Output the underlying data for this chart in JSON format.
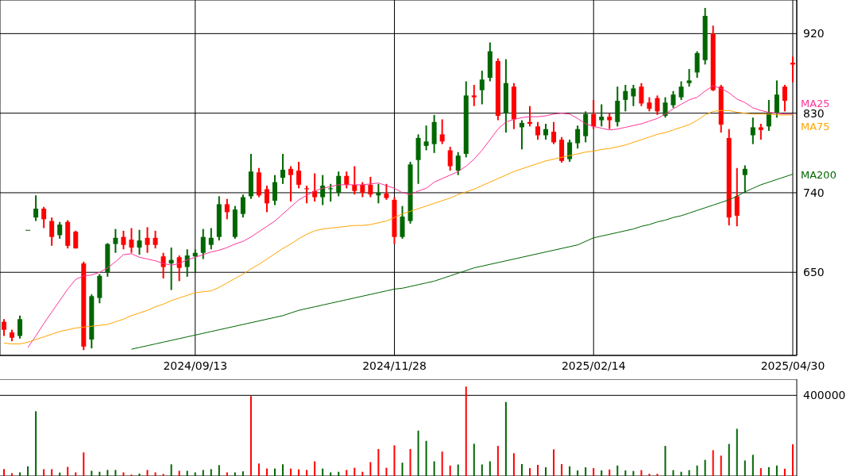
{
  "chart_data": [
    {
      "type": "candlestick",
      "categories": [
        null,
        null,
        null,
        null,
        null,
        null,
        null,
        null,
        null,
        null,
        null,
        null,
        null,
        null,
        null,
        null,
        null,
        null,
        null,
        null,
        null,
        null,
        null,
        null,
        "2024/09/13",
        null,
        null,
        null,
        null,
        null,
        null,
        null,
        null,
        null,
        null,
        null,
        null,
        null,
        null,
        null,
        null,
        null,
        null,
        null,
        null,
        null,
        null,
        null,
        null,
        "2024/11/28",
        null,
        null,
        null,
        null,
        null,
        null,
        null,
        null,
        null,
        null,
        null,
        null,
        null,
        null,
        null,
        null,
        null,
        null,
        null,
        null,
        null,
        null,
        null,
        null,
        "2025/02/14",
        null,
        null,
        null,
        null,
        null,
        null,
        null,
        null,
        null,
        null,
        null,
        null,
        null,
        null,
        null,
        null,
        null,
        null,
        null,
        null,
        null,
        null,
        null,
        null,
        "2025/04/30"
      ],
      "ohlc": [
        [
          594,
          597,
          578,
          585
        ],
        [
          582,
          585,
          572,
          576
        ],
        [
          578,
          601,
          575,
          597
        ],
        [
          698,
          698,
          698,
          698
        ],
        [
          712,
          737,
          708,
          722
        ],
        [
          722,
          724,
          700,
          710
        ],
        [
          708,
          712,
          680,
          690
        ],
        [
          692,
          707,
          688,
          704
        ],
        [
          707,
          709,
          677,
          680
        ],
        [
          696,
          697,
          677,
          677
        ],
        [
          660,
          662,
          562,
          566
        ],
        [
          574,
          625,
          564,
          623
        ],
        [
          621,
          648,
          615,
          646
        ],
        [
          650,
          683,
          645,
          682
        ],
        [
          682,
          699,
          672,
          689
        ],
        [
          690,
          697,
          676,
          681
        ],
        [
          687,
          700,
          672,
          678
        ],
        [
          678,
          698,
          670,
          686
        ],
        [
          689,
          701,
          672,
          681
        ],
        [
          689,
          697,
          677,
          681
        ],
        [
          668,
          672,
          643,
          656
        ],
        [
          660,
          678,
          630,
          664
        ],
        [
          667,
          669,
          640,
          655
        ],
        [
          656,
          676,
          645,
          669
        ],
        [
          668,
          676,
          650,
          672
        ],
        [
          672,
          699,
          665,
          690
        ],
        [
          681,
          700,
          676,
          689
        ],
        [
          690,
          736,
          686,
          727
        ],
        [
          727,
          733,
          710,
          718
        ],
        [
          690,
          725,
          688,
          721
        ],
        [
          716,
          738,
          712,
          735
        ],
        [
          736,
          784,
          733,
          764
        ],
        [
          763,
          768,
          735,
          737
        ],
        [
          744,
          748,
          718,
          728
        ],
        [
          731,
          760,
          726,
          752
        ],
        [
          757,
          784,
          750,
          766
        ],
        [
          767,
          770,
          730,
          760
        ],
        [
          765,
          775,
          745,
          749
        ],
        [
          745,
          748,
          728,
          744
        ],
        [
          742,
          762,
          730,
          735
        ],
        [
          735,
          760,
          726,
          748
        ],
        [
          744,
          750,
          730,
          745
        ],
        [
          740,
          764,
          736,
          759
        ],
        [
          759,
          764,
          745,
          749
        ],
        [
          749,
          770,
          738,
          742
        ],
        [
          749,
          752,
          735,
          740
        ],
        [
          749,
          758,
          735,
          738
        ],
        [
          737,
          750,
          728,
          740
        ],
        [
          739,
          750,
          732,
          734
        ],
        [
          732,
          735,
          682,
          690
        ],
        [
          690,
          725,
          688,
          713
        ],
        [
          708,
          775,
          705,
          772
        ],
        [
          777,
          806,
          750,
          802
        ],
        [
          793,
          816,
          788,
          798
        ],
        [
          795,
          828,
          785,
          820
        ],
        [
          806,
          823,
          795,
          798
        ],
        [
          788,
          792,
          765,
          770
        ],
        [
          765,
          786,
          760,
          782
        ],
        [
          784,
          866,
          780,
          850
        ],
        [
          850,
          862,
          838,
          848
        ],
        [
          856,
          878,
          840,
          868
        ],
        [
          870,
          910,
          866,
          900
        ],
        [
          889,
          892,
          822,
          827
        ],
        [
          830,
          891,
          808,
          864
        ],
        [
          860,
          864,
          812,
          823
        ],
        [
          814,
          822,
          789,
          819
        ],
        [
          820,
          838,
          815,
          818
        ],
        [
          815,
          820,
          800,
          805
        ],
        [
          805,
          818,
          800,
          812
        ],
        [
          809,
          820,
          795,
          797
        ],
        [
          800,
          803,
          774,
          776
        ],
        [
          778,
          800,
          775,
          797
        ],
        [
          796,
          816,
          790,
          812
        ],
        [
          804,
          832,
          797,
          829
        ],
        [
          829,
          845,
          812,
          815
        ],
        [
          822,
          840,
          815,
          826
        ],
        [
          826,
          830,
          812,
          822
        ],
        [
          820,
          860,
          815,
          844
        ],
        [
          845,
          862,
          832,
          855
        ],
        [
          849,
          862,
          838,
          858
        ],
        [
          860,
          864,
          838,
          841
        ],
        [
          842,
          848,
          832,
          835
        ],
        [
          847,
          850,
          828,
          832
        ],
        [
          827,
          848,
          825,
          842
        ],
        [
          839,
          855,
          836,
          851
        ],
        [
          848,
          866,
          845,
          860
        ],
        [
          864,
          880,
          860,
          867
        ],
        [
          876,
          900,
          870,
          898
        ],
        [
          890,
          949,
          885,
          940
        ],
        [
          920,
          929,
          855,
          856
        ],
        [
          860,
          862,
          808,
          817
        ],
        [
          802,
          812,
          703,
          712
        ],
        [
          736,
          768,
          702,
          714
        ],
        [
          760,
          771,
          740,
          767
        ],
        [
          805,
          825,
          795,
          814
        ],
        [
          814,
          818,
          800,
          811
        ],
        [
          815,
          845,
          810,
          830
        ],
        [
          830,
          867,
          825,
          851
        ],
        [
          860,
          862,
          832,
          844
        ],
        [
          887,
          894,
          865,
          885
        ]
      ],
      "colors": [
        "#ff0000",
        "#ff0000",
        "#006600",
        "#006600",
        "#006600",
        "#ff0000",
        "#ff0000",
        "#006600",
        "#ff0000",
        "#ff0000",
        "#ff0000",
        "#006600",
        "#006600",
        "#006600",
        "#006600",
        "#ff0000",
        "#ff0000",
        "#006600",
        "#ff0000",
        "#ff0000",
        "#ff0000",
        "#006600",
        "#ff0000",
        "#006600",
        "#006600",
        "#006600",
        "#006600",
        "#006600",
        "#ff0000",
        "#006600",
        "#006600",
        "#006600",
        "#ff0000",
        "#ff0000",
        "#006600",
        "#006600",
        "#ff0000",
        "#ff0000",
        "#ff0000",
        "#ff0000",
        "#006600",
        "#006600",
        "#006600",
        "#ff0000",
        "#ff0000",
        "#ff0000",
        "#ff0000",
        "#006600",
        "#ff0000",
        "#ff0000",
        "#006600",
        "#006600",
        "#006600",
        "#006600",
        "#006600",
        "#ff0000",
        "#ff0000",
        "#006600",
        "#006600",
        "#ff0000",
        "#006600",
        "#006600",
        "#ff0000",
        "#006600",
        "#ff0000",
        "#006600",
        "#ff0000",
        "#ff0000",
        "#006600",
        "#ff0000",
        "#ff0000",
        "#006600",
        "#006600",
        "#006600",
        "#ff0000",
        "#006600",
        "#ff0000",
        "#006600",
        "#006600",
        "#006600",
        "#ff0000",
        "#ff0000",
        "#ff0000",
        "#006600",
        "#006600",
        "#006600",
        "#006600",
        "#006600",
        "#006600",
        "#ff0000",
        "#ff0000",
        "#ff0000",
        "#ff0000",
        "#006600",
        "#006600",
        "#ff0000",
        "#006600",
        "#006600",
        "#ff0000",
        "#ff0000"
      ],
      "series": [
        {
          "name": "MA25",
          "type": "line",
          "color": "#ff3399",
          "values": [
            null,
            null,
            null,
            565,
            578,
            592,
            605,
            618,
            631,
            642,
            646,
            647,
            650,
            655,
            662,
            670,
            671,
            667,
            665,
            663,
            660,
            658,
            660,
            664,
            667,
            670,
            673,
            675,
            678,
            682,
            685,
            690,
            696,
            702,
            708,
            716,
            724,
            732,
            737,
            742,
            745,
            747,
            749,
            749,
            749,
            749,
            750,
            751,
            748,
            745,
            740,
            738,
            742,
            745,
            752,
            756,
            760,
            764,
            770,
            778,
            788,
            800,
            812,
            820,
            823,
            825,
            826,
            826,
            827,
            829,
            830,
            829,
            824,
            818,
            815,
            813,
            811,
            812,
            814,
            816,
            818,
            821,
            824,
            829,
            835,
            840,
            845,
            848,
            855,
            861,
            858,
            853,
            846,
            842,
            836,
            833,
            831,
            830,
            829,
            829
          ]
        },
        {
          "name": "MA75",
          "type": "line",
          "color": "#ffa500",
          "values": [
            570,
            569,
            569,
            571,
            574,
            577,
            580,
            583,
            585,
            587,
            588,
            589,
            590,
            591,
            594,
            597,
            601,
            604,
            607,
            611,
            614,
            618,
            621,
            624,
            627,
            628,
            629,
            633,
            638,
            643,
            648,
            654,
            659,
            665,
            671,
            677,
            682,
            688,
            693,
            697,
            699,
            700,
            701,
            702,
            703,
            703,
            704,
            706,
            708,
            712,
            716,
            719,
            722,
            725,
            728,
            731,
            734,
            738,
            741,
            744,
            748,
            752,
            756,
            760,
            764,
            767,
            770,
            773,
            776,
            778,
            780,
            782,
            784,
            786,
            787,
            789,
            790,
            792,
            794,
            797,
            800,
            803,
            806,
            808,
            811,
            814,
            817,
            822,
            828,
            832,
            833,
            833,
            831,
            830,
            829,
            829,
            829,
            828,
            828,
            828
          ]
        },
        {
          "name": "MA200",
          "type": "line",
          "color": "#006600",
          "values": [
            null,
            null,
            null,
            null,
            null,
            null,
            null,
            null,
            null,
            null,
            null,
            null,
            null,
            null,
            null,
            null,
            563,
            565,
            567,
            569,
            571,
            573,
            575,
            577,
            579,
            581,
            583,
            585,
            587,
            589,
            591,
            593,
            595,
            597,
            599,
            601,
            604,
            607,
            609,
            611,
            613,
            615,
            617,
            619,
            621,
            623,
            625,
            627,
            629,
            631,
            632,
            634,
            636,
            638,
            640,
            643,
            646,
            649,
            652,
            655,
            657,
            659,
            661,
            663,
            665,
            667,
            669,
            671,
            673,
            675,
            677,
            679,
            681,
            685,
            689,
            691,
            693,
            695,
            697,
            699,
            702,
            704,
            707,
            709,
            712,
            714,
            717,
            720,
            723,
            726,
            729,
            732,
            736,
            741,
            745,
            749,
            752,
            755,
            758,
            761
          ]
        }
      ],
      "ylim": [
        556,
        958
      ],
      "yticks": [
        650,
        740,
        830,
        920
      ],
      "grid": true
    },
    {
      "type": "bar",
      "categories": [
        null,
        null,
        null,
        null,
        null,
        null,
        null,
        null,
        null,
        null,
        null,
        null,
        null,
        null,
        null,
        null,
        null,
        null,
        null,
        null,
        null,
        null,
        null,
        null,
        null,
        null,
        null,
        null,
        null,
        null,
        null,
        null,
        null,
        null,
        null,
        null,
        null,
        null,
        null,
        null,
        null,
        null,
        null,
        null,
        null,
        null,
        null,
        null,
        null,
        null,
        null,
        null,
        null,
        null,
        null,
        null,
        null,
        null,
        null,
        null,
        null,
        null,
        null,
        null,
        null,
        null,
        null,
        null,
        null,
        null,
        null,
        null,
        null,
        null,
        null,
        null,
        null,
        null,
        null,
        null,
        null,
        null,
        null,
        null,
        null,
        null,
        null,
        null,
        null,
        null,
        null,
        null,
        null,
        null,
        null,
        null,
        null,
        null,
        null,
        null
      ],
      "values": [
        34000,
        14000,
        18000,
        48000,
        321000,
        34000,
        34000,
        17000,
        45000,
        18000,
        117000,
        26000,
        21000,
        30000,
        30000,
        18000,
        7000,
        12000,
        30000,
        18000,
        10000,
        58000,
        26000,
        26000,
        18000,
        30000,
        34000,
        54000,
        18000,
        18000,
        23000,
        396000,
        62000,
        37000,
        37000,
        58000,
        37000,
        33000,
        30000,
        73000,
        37000,
        18000,
        21000,
        30000,
        41000,
        21000,
        69000,
        134000,
        41000,
        152000,
        66000,
        134000,
        225000,
        174000,
        73000,
        121000,
        52000,
        57000,
        444000,
        160000,
        57000,
        73000,
        149000,
        367000,
        113000,
        59000,
        39000,
        55000,
        43000,
        132000,
        59000,
        48000,
        28000,
        43000,
        39000,
        28000,
        32000,
        52000,
        28000,
        25000,
        29000,
        11000,
        11000,
        149000,
        29000,
        21000,
        29000,
        52000,
        80000,
        128000,
        101000,
        159000,
        234000,
        77000,
        105000,
        39000,
        44000,
        52000,
        36000,
        157000
      ],
      "colors": [
        "#ff0000",
        "#ff0000",
        "#006600",
        "#006600",
        "#006600",
        "#ff0000",
        "#ff0000",
        "#006600",
        "#ff0000",
        "#ff0000",
        "#ff0000",
        "#006600",
        "#006600",
        "#006600",
        "#006600",
        "#ff0000",
        "#ff0000",
        "#006600",
        "#ff0000",
        "#ff0000",
        "#ff0000",
        "#006600",
        "#ff0000",
        "#006600",
        "#006600",
        "#006600",
        "#006600",
        "#006600",
        "#ff0000",
        "#006600",
        "#006600",
        "#ff0000",
        "#ff0000",
        "#ff0000",
        "#006600",
        "#006600",
        "#ff0000",
        "#ff0000",
        "#ff0000",
        "#ff0000",
        "#006600",
        "#006600",
        "#006600",
        "#ff0000",
        "#ff0000",
        "#ff0000",
        "#ff0000",
        "#ff0000",
        "#ff0000",
        "#ff0000",
        "#006600",
        "#ff0000",
        "#006600",
        "#006600",
        "#006600",
        "#ff0000",
        "#ff0000",
        "#006600",
        "#ff0000",
        "#006600",
        "#006600",
        "#006600",
        "#ff0000",
        "#006600",
        "#ff0000",
        "#006600",
        "#ff0000",
        "#ff0000",
        "#006600",
        "#ff0000",
        "#ff0000",
        "#006600",
        "#006600",
        "#006600",
        "#ff0000",
        "#006600",
        "#ff0000",
        "#006600",
        "#006600",
        "#006600",
        "#ff0000",
        "#ff0000",
        "#ff0000",
        "#006600",
        "#006600",
        "#006600",
        "#006600",
        "#006600",
        "#006600",
        "#ff0000",
        "#ff0000",
        "#006600",
        "#006600",
        "#006600",
        "#006600",
        "#ff0000",
        "#006600",
        "#006600",
        "#ff0000",
        "#ff0000"
      ],
      "ylim": [
        0,
        480000
      ],
      "yticks": [
        400000
      ],
      "grid": "y",
      "tick_labels": "y"
    }
  ]
}
